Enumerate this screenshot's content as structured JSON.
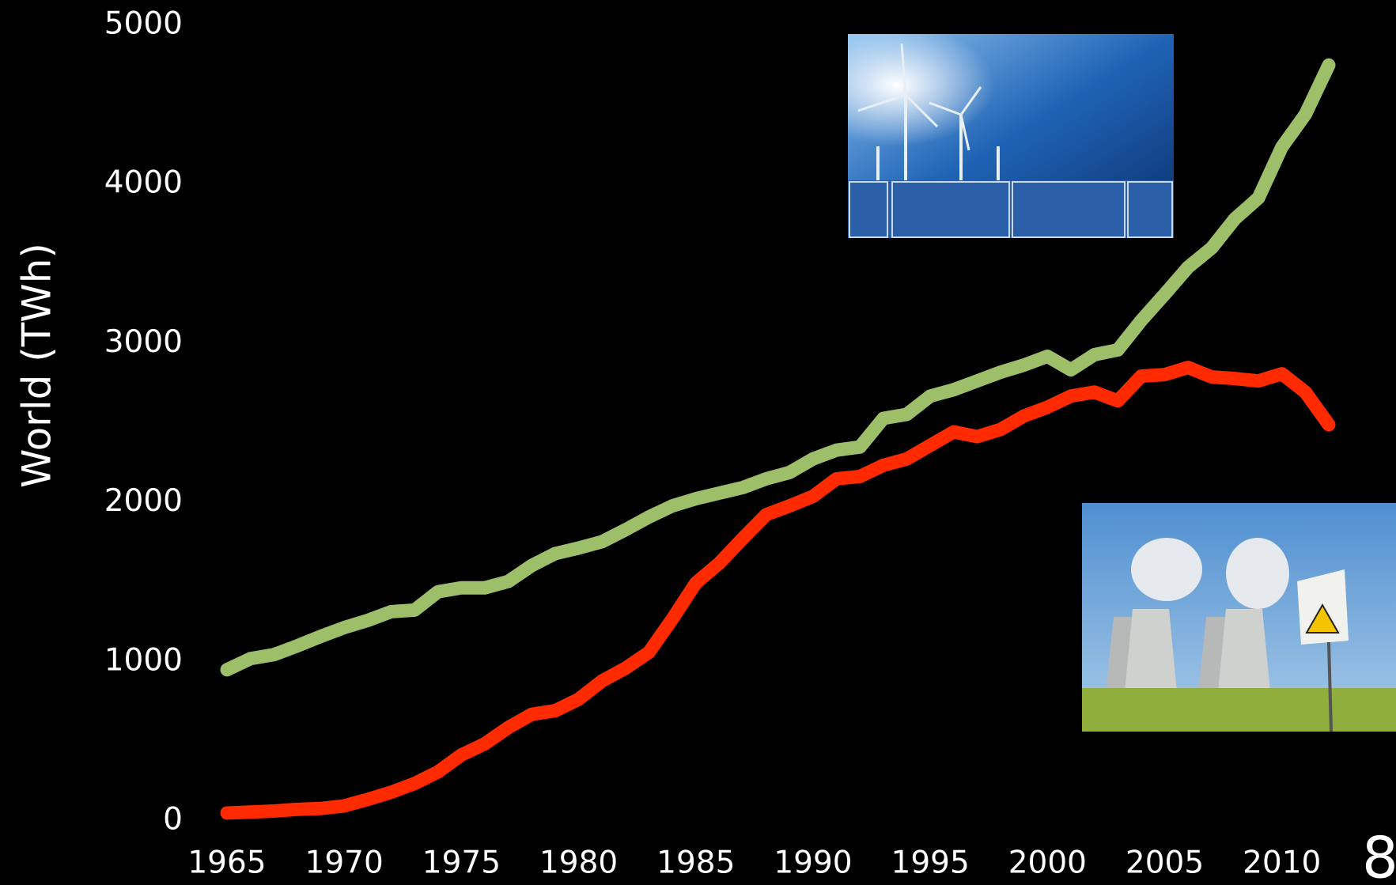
{
  "chart_data": {
    "type": "line",
    "y_label": "World (TWh)",
    "x": [
      1965,
      1966,
      1967,
      1968,
      1969,
      1970,
      1971,
      1972,
      1973,
      1974,
      1975,
      1976,
      1977,
      1978,
      1979,
      1980,
      1981,
      1982,
      1983,
      1984,
      1985,
      1986,
      1987,
      1988,
      1989,
      1990,
      1991,
      1992,
      1993,
      1994,
      1995,
      1996,
      1997,
      1998,
      1999,
      2000,
      2001,
      2002,
      2003,
      2004,
      2005,
      2006,
      2007,
      2008,
      2009,
      2010,
      2011,
      2012
    ],
    "series": [
      {
        "color": "#9dbf6a",
        "values": [
          950,
          1020,
          1045,
          1100,
          1160,
          1215,
          1260,
          1315,
          1325,
          1440,
          1465,
          1465,
          1505,
          1605,
          1680,
          1715,
          1755,
          1830,
          1910,
          1980,
          2025,
          2060,
          2095,
          2150,
          2190,
          2275,
          2330,
          2350,
          2530,
          2555,
          2670,
          2710,
          2765,
          2820,
          2865,
          2920,
          2835,
          2930,
          2960,
          3145,
          3310,
          3480,
          3600,
          3785,
          3915,
          4235,
          4440,
          4750
        ]
      },
      {
        "color": "#ff2a00",
        "values": [
          50,
          56,
          62,
          73,
          78,
          95,
          135,
          180,
          235,
          308,
          415,
          485,
          587,
          670,
          693,
          765,
          880,
          960,
          1060,
          1270,
          1495,
          1620,
          1775,
          1925,
          1980,
          2040,
          2150,
          2165,
          2235,
          2275,
          2360,
          2445,
          2415,
          2460,
          2545,
          2600,
          2670,
          2695,
          2640,
          2795,
          2805,
          2850,
          2790,
          2780,
          2765,
          2810,
          2695,
          2490
        ]
      }
    ],
    "xlim": [
      1965,
      2012
    ],
    "xticks": [
      1965,
      1970,
      1975,
      1980,
      1985,
      1990,
      1995,
      2000,
      2005,
      2010
    ],
    "ylim": [
      0,
      5000
    ],
    "yticks": [
      0,
      1000,
      2000,
      3000,
      4000,
      5000
    ]
  },
  "slide": {
    "page_number": "8"
  }
}
